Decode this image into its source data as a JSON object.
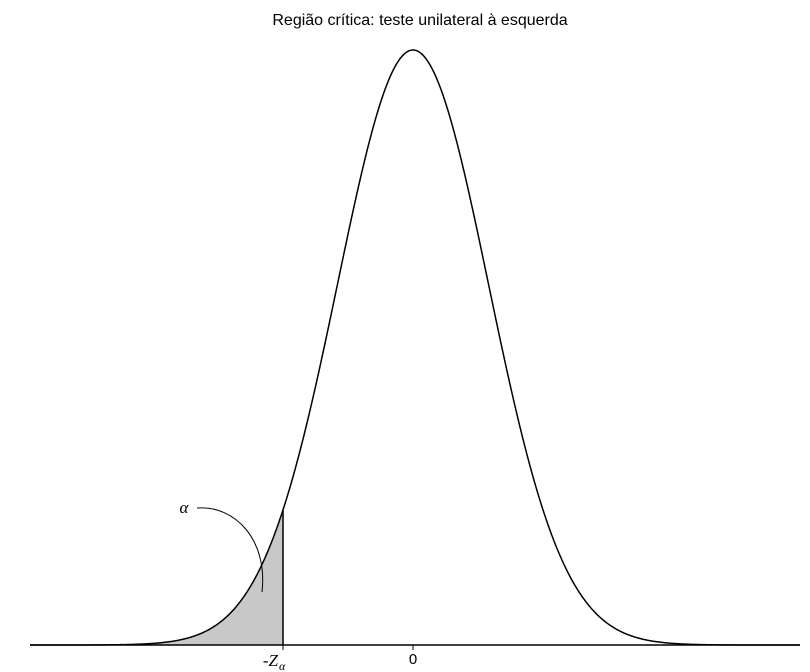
{
  "title": "Região crítica: teste unilateral à esquerda",
  "annotation": "α",
  "ticks": [
    {
      "label": "-Z",
      "subscript": "α"
    },
    {
      "label": "0"
    }
  ]
}
